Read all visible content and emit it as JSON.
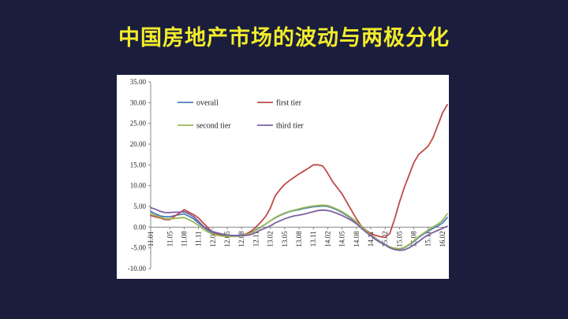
{
  "title": "中国房地产市场的波动与两极分化",
  "chart_data": {
    "type": "line",
    "title": "",
    "xlabel": "",
    "ylabel": "",
    "ylim": [
      -10,
      35
    ],
    "y_ticks": [
      "35.00",
      "30.00",
      "25.00",
      "20.00",
      "15.00",
      "10.00",
      "5.00",
      "0.00",
      "-5.00",
      "-10.00"
    ],
    "x_tick_labels": [
      "11.01",
      "11.05",
      "11.08",
      "11.11",
      "12.02",
      "12.05",
      "12.08",
      "12.11",
      "13.02",
      "13.05",
      "13.08",
      "13.11",
      "14.02",
      "14.05",
      "14.08",
      "14.11",
      "15.02",
      "15.05",
      "15.08",
      "15.11",
      "16.02"
    ],
    "grid": false,
    "legend": "top-left, two columns",
    "x": [
      "11.01",
      "11.02",
      "11.03",
      "11.04",
      "11.05",
      "11.06",
      "11.07",
      "11.08",
      "11.09",
      "11.10",
      "11.11",
      "11.12",
      "12.01",
      "12.02",
      "12.03",
      "12.04",
      "12.05",
      "12.06",
      "12.07",
      "12.08",
      "12.09",
      "12.10",
      "12.11",
      "12.12",
      "13.01",
      "13.02",
      "13.03",
      "13.04",
      "13.05",
      "13.06",
      "13.07",
      "13.08",
      "13.09",
      "13.10",
      "13.11",
      "13.12",
      "14.01",
      "14.02",
      "14.03",
      "14.04",
      "14.05",
      "14.06",
      "14.07",
      "14.08",
      "14.09",
      "14.10",
      "14.11",
      "14.12",
      "15.01",
      "15.02",
      "15.03",
      "15.04",
      "15.05",
      "15.06",
      "15.07",
      "15.08",
      "15.09",
      "15.10",
      "15.11",
      "15.12",
      "16.01",
      "16.02",
      "16.03"
    ],
    "series": [
      {
        "name": "overall",
        "color": "#4a7ebb",
        "values": [
          3.8,
          3.2,
          2.7,
          2.5,
          2.5,
          2.8,
          3.0,
          3.2,
          2.6,
          2.0,
          1.0,
          0.0,
          -0.8,
          -1.4,
          -1.7,
          -1.9,
          -2.0,
          -2.0,
          -2.0,
          -1.9,
          -1.7,
          -1.3,
          -0.7,
          0.0,
          0.7,
          1.5,
          2.2,
          2.8,
          3.3,
          3.7,
          4.0,
          4.2,
          4.5,
          4.7,
          4.9,
          5.0,
          5.1,
          5.0,
          4.6,
          4.1,
          3.5,
          2.8,
          2.0,
          1.2,
          0.2,
          -0.8,
          -1.8,
          -2.7,
          -3.5,
          -4.2,
          -4.8,
          -5.2,
          -5.3,
          -5.0,
          -4.3,
          -3.5,
          -2.5,
          -1.7,
          -1.0,
          -0.3,
          0.3,
          1.0,
          2.3
        ]
      },
      {
        "name": "first tier",
        "color": "#be4b48",
        "values": [
          2.8,
          2.5,
          2.2,
          1.8,
          1.8,
          2.6,
          3.4,
          4.2,
          3.6,
          3.0,
          2.2,
          1.0,
          -0.2,
          -1.2,
          -1.6,
          -1.8,
          -2.0,
          -2.1,
          -2.2,
          -2.0,
          -1.6,
          -1.0,
          0.0,
          1.2,
          2.5,
          4.5,
          7.5,
          9.0,
          10.3,
          11.2,
          12.0,
          12.8,
          13.5,
          14.2,
          15.0,
          15.0,
          14.7,
          13.0,
          11.0,
          9.5,
          8.0,
          6.0,
          4.0,
          2.0,
          0.3,
          -0.8,
          -1.5,
          -2.0,
          -2.3,
          -2.5,
          -1.5,
          2.0,
          6.0,
          9.5,
          12.5,
          15.5,
          17.5,
          18.5,
          19.5,
          21.5,
          24.5,
          27.5,
          29.5
        ]
      },
      {
        "name": "second tier",
        "color": "#98b954",
        "values": [
          3.3,
          2.8,
          2.4,
          2.0,
          2.0,
          2.1,
          2.2,
          2.3,
          1.8,
          1.2,
          0.4,
          -0.5,
          -1.2,
          -1.7,
          -2.0,
          -2.2,
          -2.3,
          -2.3,
          -2.2,
          -2.0,
          -1.8,
          -1.4,
          -0.8,
          -0.1,
          0.7,
          1.5,
          2.3,
          2.9,
          3.4,
          3.8,
          4.1,
          4.4,
          4.7,
          4.9,
          5.1,
          5.2,
          5.3,
          5.2,
          4.8,
          4.3,
          3.7,
          3.0,
          2.2,
          1.3,
          0.2,
          -0.9,
          -1.9,
          -2.8,
          -3.6,
          -4.3,
          -4.8,
          -5.1,
          -5.2,
          -4.9,
          -4.2,
          -3.3,
          -2.3,
          -1.5,
          -0.7,
          0.0,
          0.7,
          1.6,
          3.2
        ]
      },
      {
        "name": "third tier",
        "color": "#7d60a0",
        "values": [
          4.7,
          4.3,
          3.8,
          3.5,
          3.5,
          3.6,
          3.6,
          3.7,
          3.2,
          2.5,
          1.4,
          0.2,
          -0.6,
          -1.1,
          -1.4,
          -1.7,
          -1.9,
          -2.0,
          -2.1,
          -2.1,
          -2.0,
          -1.8,
          -1.3,
          -0.7,
          -0.2,
          0.3,
          1.0,
          1.5,
          2.0,
          2.4,
          2.7,
          2.9,
          3.1,
          3.4,
          3.7,
          4.0,
          4.1,
          4.0,
          3.7,
          3.3,
          2.8,
          2.2,
          1.6,
          0.8,
          -0.2,
          -1.2,
          -2.1,
          -3.0,
          -3.7,
          -4.3,
          -5.0,
          -5.4,
          -5.6,
          -5.5,
          -5.0,
          -4.3,
          -3.5,
          -2.6,
          -1.9,
          -1.3,
          -0.8,
          -0.3,
          0.2
        ]
      }
    ]
  }
}
